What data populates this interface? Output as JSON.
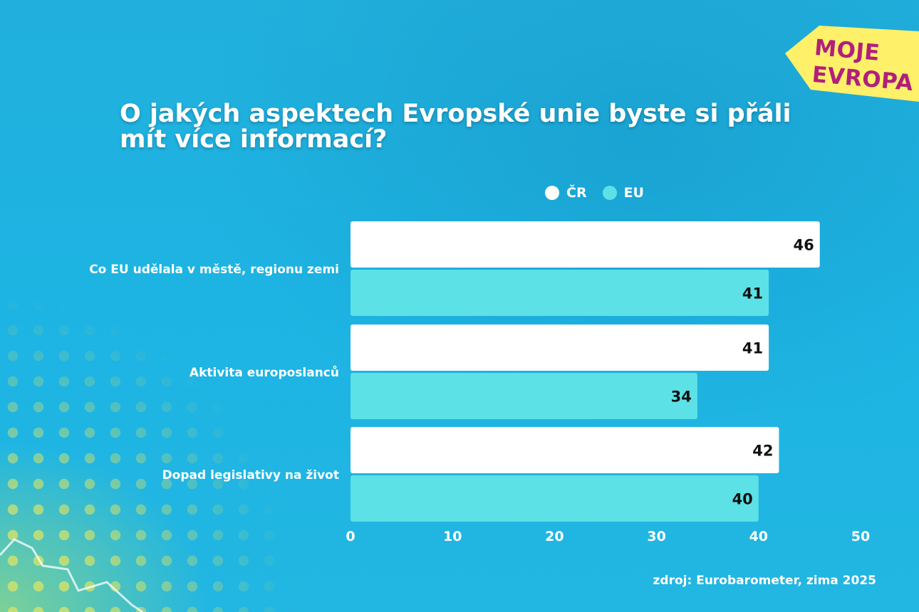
{
  "title": "O jakých aspektech Evropské unie byste si přáli mít více informací?",
  "badge": {
    "line1": "MOJE",
    "line2": "EVROPA"
  },
  "source": "zdroj: Eurobarometer, zima 2025",
  "colors": {
    "cr": "#ffffff",
    "eu": "#5ce1e6",
    "badge_bg": "#fff06a",
    "badge_text": "#b0207a"
  },
  "legend": [
    {
      "label": "ČR",
      "color": "#ffffff"
    },
    {
      "label": "EU",
      "color": "#5ce1e6"
    }
  ],
  "chart_data": {
    "type": "bar",
    "orientation": "horizontal",
    "title": "O jakých aspektech Evropské unie byste si přáli mít více informací?",
    "categories": [
      "Co EU udělala v městě, regionu zemi",
      "Aktivita europoslanců",
      "Dopad legislativy na život"
    ],
    "series": [
      {
        "name": "ČR",
        "values": [
          46,
          41,
          42
        ]
      },
      {
        "name": "EU",
        "values": [
          41,
          34,
          40
        ]
      }
    ],
    "xlim": [
      0,
      50
    ],
    "xticks": [
      0,
      10,
      20,
      30,
      40,
      50
    ],
    "xlabel": "",
    "ylabel": "",
    "legend_position": "top",
    "grid": false
  }
}
